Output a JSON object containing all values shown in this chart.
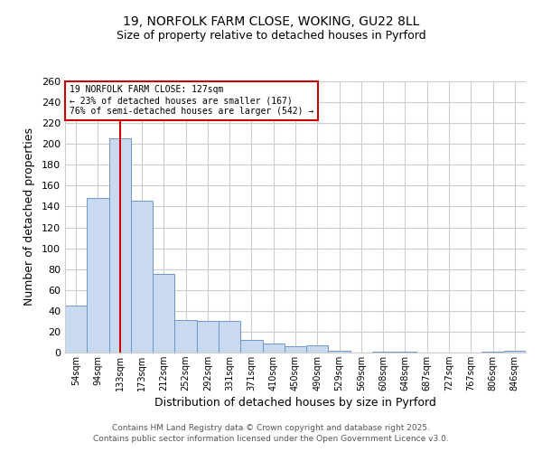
{
  "title_line1": "19, NORFOLK FARM CLOSE, WOKING, GU22 8LL",
  "title_line2": "Size of property relative to detached houses in Pyrford",
  "xlabel": "Distribution of detached houses by size in Pyrford",
  "ylabel": "Number of detached properties",
  "categories": [
    "54sqm",
    "94sqm",
    "133sqm",
    "173sqm",
    "212sqm",
    "252sqm",
    "292sqm",
    "331sqm",
    "371sqm",
    "410sqm",
    "450sqm",
    "490sqm",
    "529sqm",
    "569sqm",
    "608sqm",
    "648sqm",
    "687sqm",
    "727sqm",
    "767sqm",
    "806sqm",
    "846sqm"
  ],
  "values": [
    45,
    148,
    205,
    146,
    75,
    31,
    30,
    30,
    12,
    9,
    6,
    7,
    2,
    0,
    1,
    1,
    0,
    0,
    0,
    1,
    2
  ],
  "bar_color": "#c9d9f0",
  "bar_edge_color": "#7096c8",
  "vline_x": 2,
  "vline_color": "#cc0000",
  "annotation_line1": "19 NORFOLK FARM CLOSE: 127sqm",
  "annotation_line2": "← 23% of detached houses are smaller (167)",
  "annotation_line3": "76% of semi-detached houses are larger (542) →",
  "ylim": [
    0,
    260
  ],
  "yticks": [
    0,
    20,
    40,
    60,
    80,
    100,
    120,
    140,
    160,
    180,
    200,
    220,
    240,
    260
  ],
  "footer_line1": "Contains HM Land Registry data © Crown copyright and database right 2025.",
  "footer_line2": "Contains public sector information licensed under the Open Government Licence v3.0.",
  "background_color": "#ffffff",
  "grid_color": "#cccccc"
}
